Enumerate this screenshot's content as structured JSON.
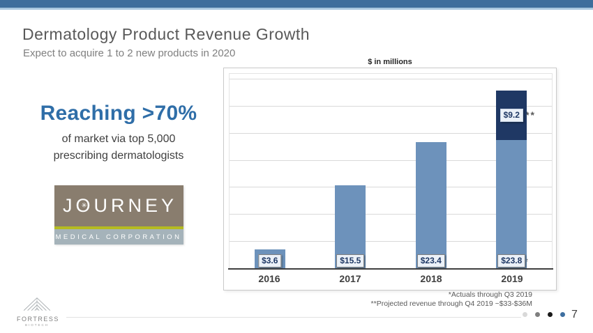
{
  "slide": {
    "title": "Dermatology Product Revenue Growth",
    "subtitle": "Expect to acquire 1 to 2 new products in 2020",
    "page_number": "7"
  },
  "left_panel": {
    "headline": "Reaching >70%",
    "subtext_line1": "of market via top 5,000",
    "subtext_line2": "prescribing dermatologists"
  },
  "journey_logo": {
    "name": "JOURNEY",
    "subtext": "MEDICAL CORPORATION",
    "colors": {
      "top_band": "#897D6E",
      "stripe": "#B5BB21",
      "bottom_band": "#A5B3BA"
    }
  },
  "fortress_logo": {
    "name": "FORTRESS",
    "subtext": "BIOTECH"
  },
  "footnotes": {
    "line1": "*Actuals through Q3 2019",
    "line2": "**Projected revenue through Q4 2019 ~$33-$36M"
  },
  "page_dots": [
    "#D9D9D9",
    "#7F7F7F",
    "#1A1A1A",
    "#3E6FA0"
  ],
  "chart_data": {
    "type": "bar",
    "stacked": true,
    "title": "$ in millions",
    "categories": [
      "2016",
      "2017",
      "2018",
      "2019"
    ],
    "series": [
      {
        "name": "actual revenue",
        "color": "#6D92BB",
        "values": [
          3.6,
          15.5,
          23.4,
          23.8
        ],
        "labels": [
          "$3.6",
          "$15.5",
          "$23.4",
          "$23.8"
        ]
      },
      {
        "name": "projected revenue",
        "color": "#1F3864",
        "values": [
          0,
          0,
          0,
          9.2
        ],
        "labels": [
          "",
          "",
          "",
          "$9.2"
        ]
      }
    ],
    "ylim": [
      0,
      35
    ],
    "gridline_step": 5,
    "grid": true,
    "legend": false,
    "annotations": {
      "projected_marker": "**",
      "actuals_marker": "*"
    }
  }
}
